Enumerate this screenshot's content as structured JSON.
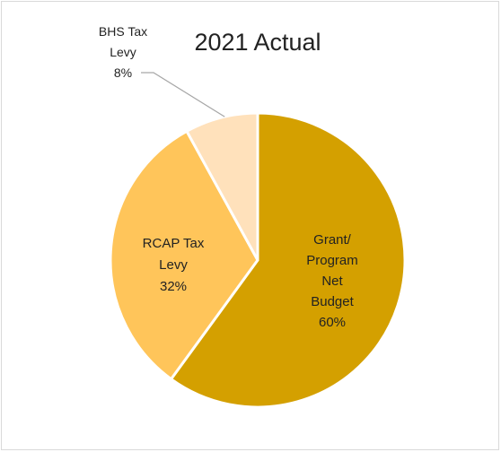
{
  "chart_data": {
    "type": "pie",
    "title": "2021 Actual",
    "slices": [
      {
        "label": "Grant/ Program Net Budget",
        "label_lines": [
          "Grant/",
          "Program",
          "Net",
          "Budget"
        ],
        "value": 60,
        "value_label": "60%",
        "color": "#D4A000"
      },
      {
        "label": "RCAP Tax Levy",
        "label_lines": [
          "RCAP Tax",
          "Levy"
        ],
        "value": 32,
        "value_label": "32%",
        "color": "#FFC55A"
      },
      {
        "label": "BHS Tax Levy",
        "label_lines": [
          "BHS Tax",
          "Levy"
        ],
        "value": 8,
        "value_label": "8%",
        "color": "#FFE1BB"
      }
    ],
    "start_angle_deg": 0,
    "direction": "clockwise",
    "legend": "none",
    "data_labels": "category and percentage",
    "slice_border_color": "#FFFFFF",
    "leader_line_color": "#A6A6A6"
  }
}
